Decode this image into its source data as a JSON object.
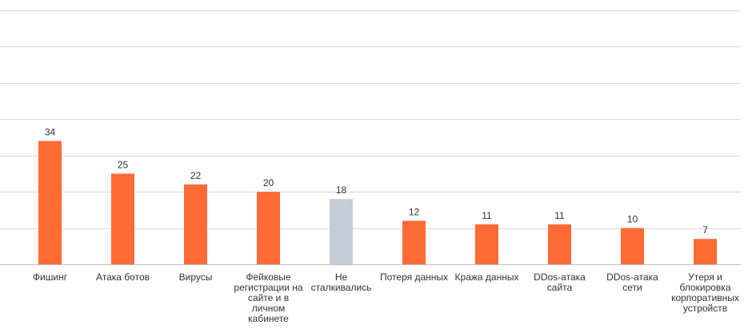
{
  "chart_data": {
    "type": "bar",
    "categories": [
      "Фишинг",
      "Атака ботов",
      "Вирусы",
      "Фейковые регистрации на сайте и в личном кабинете",
      "Не сталкивались",
      "Потеря данных",
      "Кража данных",
      "DDos-атака сайта",
      "DDos-атака сети",
      "Утеря и блокировка корпоративных устройств"
    ],
    "category_lines": [
      [
        "Фишинг"
      ],
      [
        "Атака ботов"
      ],
      [
        "Вирусы"
      ],
      [
        "Фейковые",
        "регистрации на",
        "сайте и в",
        "личном",
        "кабинете"
      ],
      [
        "Не",
        "сталкивались"
      ],
      [
        "Потеря данных"
      ],
      [
        "Кража данных"
      ],
      [
        "DDos-атака",
        "сайта"
      ],
      [
        "DDos-атака",
        "сети"
      ],
      [
        "Утеря и",
        "блокировка",
        "корпоративных",
        "устройств"
      ]
    ],
    "values": [
      34,
      25,
      22,
      20,
      18,
      12,
      11,
      11,
      10,
      7
    ],
    "value_labels": [
      "34",
      "25",
      "22",
      "20",
      "18",
      "12",
      "11",
      "11",
      "10",
      "7"
    ],
    "bar_colors": [
      "#ff6b35",
      "#ff6b35",
      "#ff6b35",
      "#ff6b35",
      "#c4ccd6",
      "#ff6b35",
      "#ff6b35",
      "#ff6b35",
      "#ff6b35",
      "#ff6b35"
    ],
    "title": "",
    "xlabel": "",
    "ylabel": "",
    "ylim": [
      0,
      70
    ],
    "grid": true,
    "y_tick_labels_shown": false,
    "legend": "none"
  }
}
